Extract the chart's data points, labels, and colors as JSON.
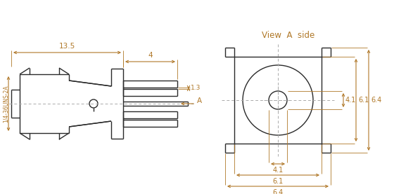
{
  "bg_color": "#ffffff",
  "line_color": "#2a2a2a",
  "dim_color": "#b07828",
  "fig_width": 5.6,
  "fig_height": 2.77,
  "title_text": "View  A  side",
  "label_uns": "1/4-36UNS-2A",
  "dim_135": "13.5",
  "dim_4": "4",
  "dim_13": "1.3",
  "dim_A": "A",
  "dim_41_right": "4.1",
  "dim_61_right": "6.1",
  "dim_64_right": "6.4",
  "dim_41_bottom": "4.1",
  "dim_61_bottom": "6.1",
  "dim_64_bottom": "6.4"
}
